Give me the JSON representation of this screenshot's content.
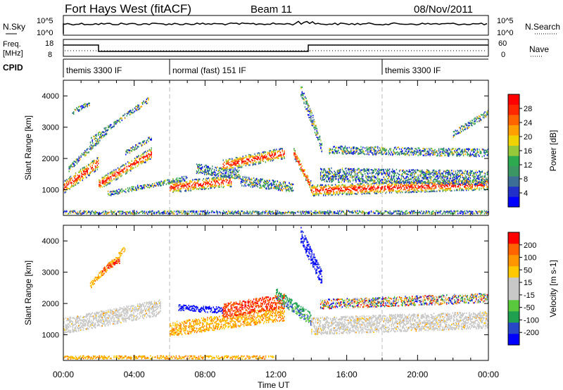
{
  "title": "Fort Hays West (fitACF)",
  "beam": "Beam 11",
  "date": "08/Nov/2011",
  "header": {
    "nsky_label": "N.Sky",
    "nsky_ticks": [
      "10^5",
      "10^0"
    ],
    "nsearch_label": "N.Search",
    "nsearch_ticks": [
      "10^5",
      "10^0"
    ],
    "freq_label_line1": "Freq.",
    "freq_label_line2": "[MHz]",
    "freq_ticks": [
      "18",
      "8"
    ],
    "nave_label": "Nave",
    "nave_ticks": [
      "60",
      "0"
    ],
    "cpid_label": "CPID"
  },
  "cpid_segments": [
    {
      "label": "themis 3300 IF",
      "start_hour": 0,
      "end_hour": 6
    },
    {
      "label": "normal (fast) 151 IF",
      "start_hour": 6,
      "end_hour": 18
    },
    {
      "label": "themis 3300 IF",
      "start_hour": 18,
      "end_hour": 24
    }
  ],
  "colors": {
    "power": [
      "#0000ff",
      "#2030c8",
      "#3c6e96",
      "#3c9664",
      "#2daa50",
      "#96c83c",
      "#f0d200",
      "#ffa000",
      "#ff6400",
      "#ff2800",
      "#ff0000"
    ],
    "velocity": [
      "#0000ff",
      "#2846c8",
      "#1ea050",
      "#5ac83c",
      "#c8c8c8",
      "#c8c8c8",
      "#ffc800",
      "#ff9600",
      "#ff6400",
      "#ff0000"
    ]
  },
  "chart_data": [
    {
      "type": "heatmap",
      "name": "power",
      "xlabel": "Time UT",
      "ylabel": "Slant Range [km]",
      "xticks": [
        "00:00",
        "04:00",
        "08:00",
        "12:00",
        "16:00",
        "20:00",
        "00:00"
      ],
      "xlim": [
        0,
        24
      ],
      "yticks": [
        "1000",
        "2000",
        "3000",
        "4000"
      ],
      "ylim": [
        180,
        4500
      ],
      "colorbar_label": "Power [dB]",
      "colorbar_ticks": [
        "4",
        "8",
        "12",
        "16",
        "20",
        "24",
        "28"
      ],
      "bands": [
        {
          "start": 0.0,
          "end": 2.0,
          "r0": 1100,
          "r1": 1900,
          "w": 400,
          "hi": true
        },
        {
          "start": 0.3,
          "end": 2.5,
          "r0": 1700,
          "r1": 2900,
          "w": 180,
          "hi": false
        },
        {
          "start": 0.5,
          "end": 1.5,
          "r0": 3500,
          "r1": 3800,
          "w": 150,
          "hi": false
        },
        {
          "start": 1.5,
          "end": 4.8,
          "r0": 2600,
          "r1": 3900,
          "w": 160,
          "hi": false
        },
        {
          "start": 2.0,
          "end": 5.0,
          "r0": 1200,
          "r1": 2200,
          "w": 350,
          "hi": true
        },
        {
          "start": 3.5,
          "end": 5.0,
          "r0": 2200,
          "r1": 2700,
          "w": 150,
          "hi": false
        },
        {
          "start": 2.5,
          "end": 7.0,
          "r0": 900,
          "r1": 1400,
          "w": 150,
          "hi": false
        },
        {
          "start": 6.0,
          "end": 9.5,
          "r0": 1100,
          "r1": 1300,
          "w": 350,
          "hi": true
        },
        {
          "start": 7.5,
          "end": 10.0,
          "r0": 1700,
          "r1": 1500,
          "w": 300,
          "hi": false
        },
        {
          "start": 9.0,
          "end": 12.5,
          "r0": 1800,
          "r1": 2200,
          "w": 350,
          "hi": true
        },
        {
          "start": 10.0,
          "end": 13.0,
          "r0": 1300,
          "r1": 1100,
          "w": 300,
          "hi": false
        },
        {
          "start": 13.0,
          "end": 14.0,
          "r0": 2200,
          "r1": 1100,
          "w": 300,
          "hi": true
        },
        {
          "start": 13.4,
          "end": 14.6,
          "r0": 4200,
          "r1": 2400,
          "w": 400,
          "hi": false
        },
        {
          "start": 14.0,
          "end": 24.0,
          "r0": 1000,
          "r1": 1200,
          "w": 350,
          "hi": true
        },
        {
          "start": 14.5,
          "end": 24.0,
          "r0": 1500,
          "r1": 1400,
          "w": 450,
          "hi": false
        },
        {
          "start": 15.0,
          "end": 24.0,
          "r0": 2300,
          "r1": 2200,
          "w": 250,
          "hi": false
        },
        {
          "start": 22.0,
          "end": 24.0,
          "r0": 2800,
          "r1": 3500,
          "w": 200,
          "hi": false
        },
        {
          "start": 0.0,
          "end": 24.0,
          "r0": 300,
          "r1": 300,
          "w": 100,
          "hi": false
        }
      ]
    },
    {
      "type": "heatmap",
      "name": "velocity",
      "xlabel": "Time UT",
      "ylabel": "Slant Range [km]",
      "xticks": [
        "00:00",
        "04:00",
        "08:00",
        "12:00",
        "16:00",
        "20:00",
        "00:00"
      ],
      "xlim": [
        0,
        24
      ],
      "yticks": [
        "1000",
        "2000",
        "3000",
        "4000"
      ],
      "ylim": [
        180,
        4500
      ],
      "colorbar_label": "Velocity [m s-1]",
      "colorbar_ticks": [
        "200",
        "100",
        "50",
        "15",
        "-15",
        "-50",
        "-100",
        "-200"
      ],
      "bands": [
        {
          "start": 0.0,
          "end": 5.5,
          "r0": 1300,
          "r1": 1900,
          "w": 500,
          "v": "gray"
        },
        {
          "start": 1.5,
          "end": 3.5,
          "r0": 2600,
          "r1": 3800,
          "w": 200,
          "v": "orange"
        },
        {
          "start": 2.2,
          "end": 3.2,
          "r0": 3100,
          "r1": 3400,
          "w": 150,
          "v": "red"
        },
        {
          "start": 6.0,
          "end": 12.5,
          "r0": 1200,
          "r1": 1700,
          "w": 450,
          "v": "orange"
        },
        {
          "start": 9.0,
          "end": 12.5,
          "r0": 1800,
          "r1": 2100,
          "w": 450,
          "v": "red"
        },
        {
          "start": 6.5,
          "end": 9.0,
          "r0": 1900,
          "r1": 1800,
          "w": 200,
          "v": "blue"
        },
        {
          "start": 12.0,
          "end": 14.0,
          "r0": 2300,
          "r1": 1500,
          "w": 400,
          "v": "green"
        },
        {
          "start": 13.4,
          "end": 14.6,
          "r0": 4200,
          "r1": 2800,
          "w": 500,
          "v": "blue"
        },
        {
          "start": 14.0,
          "end": 24.0,
          "r0": 1300,
          "r1": 1500,
          "w": 550,
          "v": "gray"
        },
        {
          "start": 14.5,
          "end": 24.0,
          "r0": 2000,
          "r1": 2200,
          "w": 300,
          "v": "mixed"
        },
        {
          "start": 0.0,
          "end": 12.0,
          "r0": 300,
          "r1": 300,
          "w": 100,
          "v": "orange"
        }
      ]
    }
  ]
}
